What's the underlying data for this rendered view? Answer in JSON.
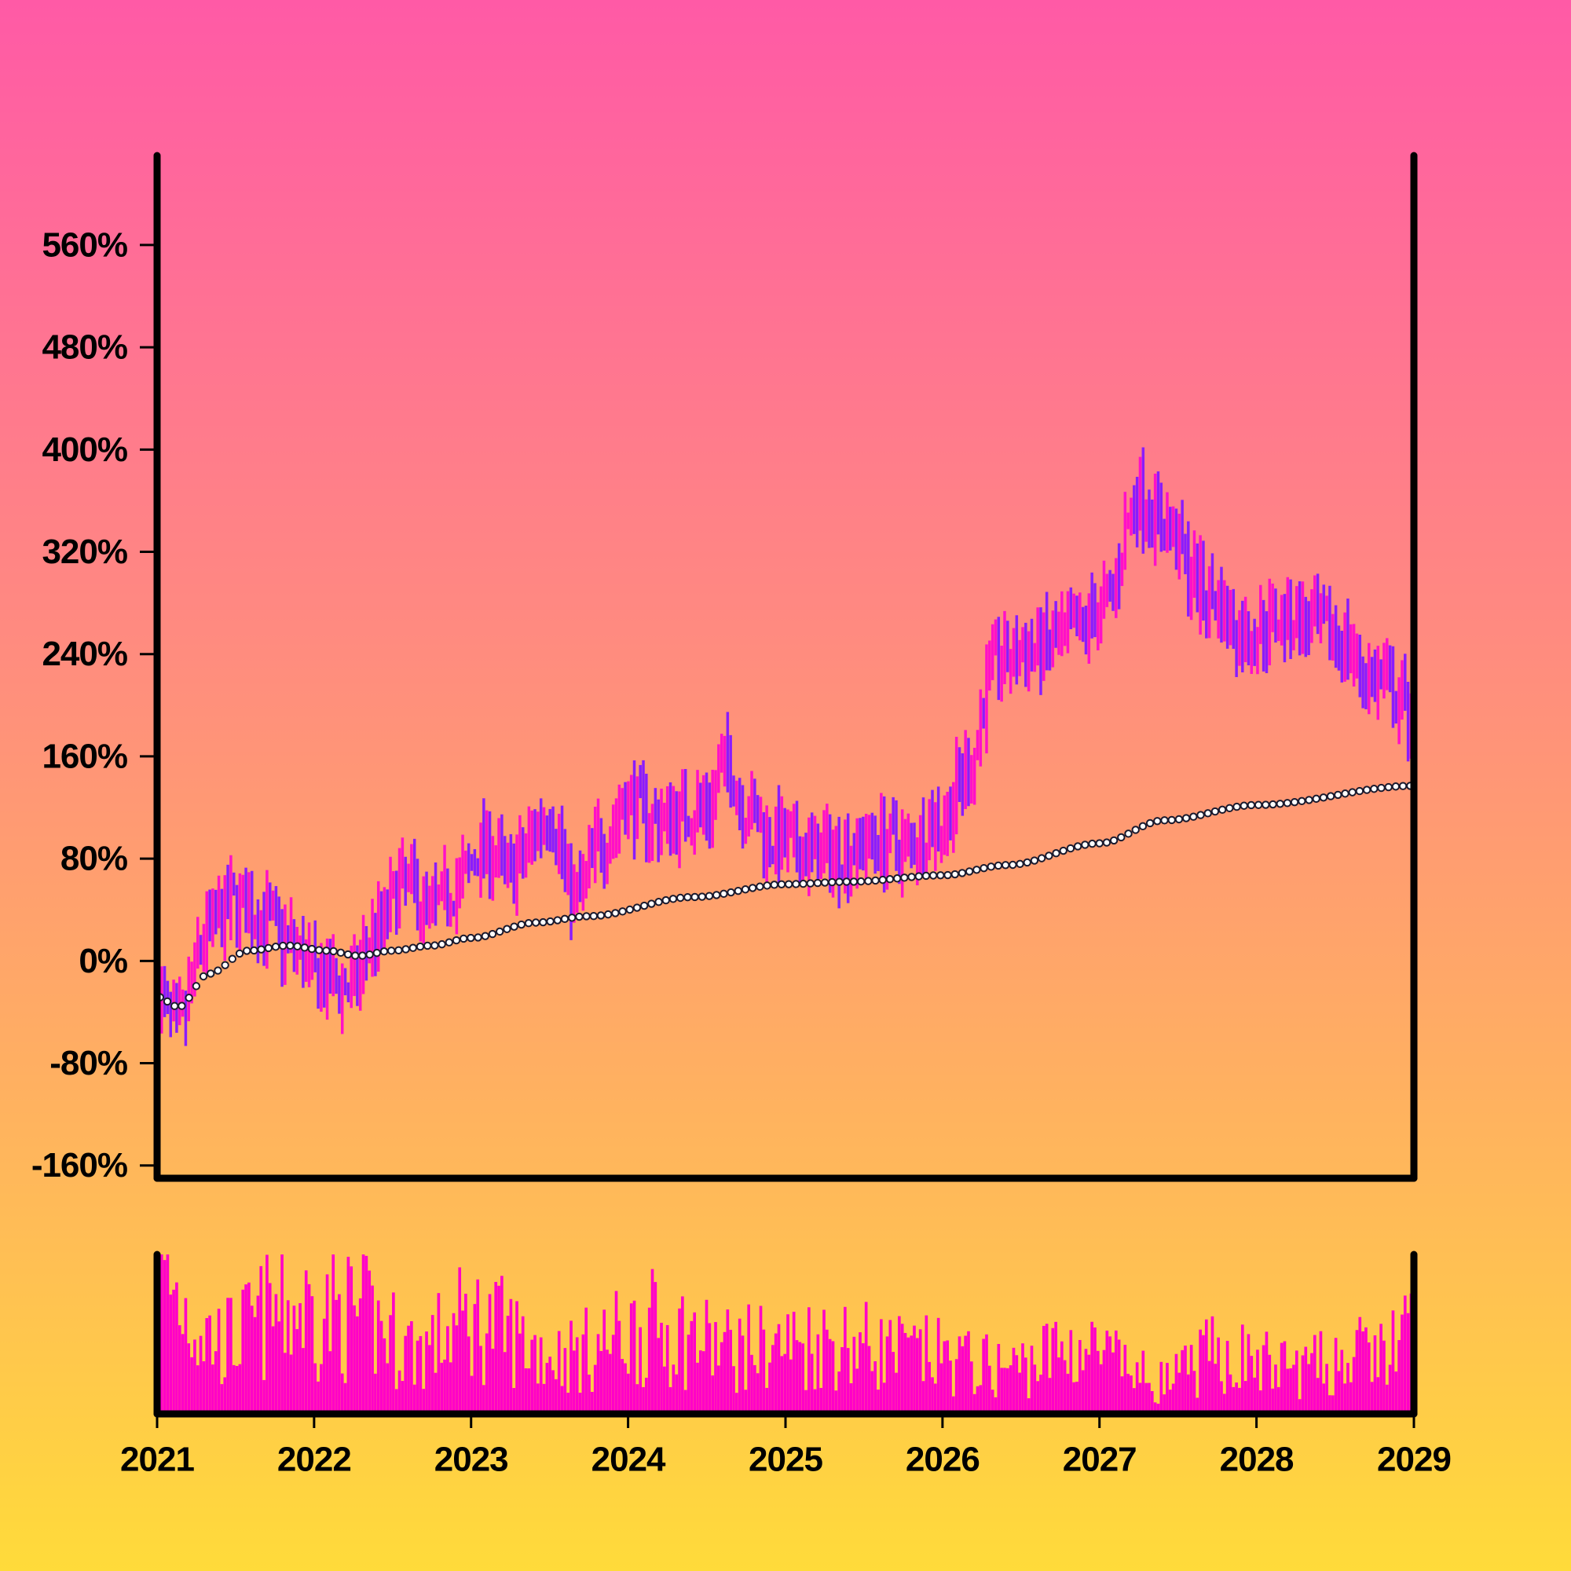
{
  "colors": {
    "up": "#ff10c8",
    "down": "#8a1cff",
    "volume": "#ff00c8",
    "axis": "#000000",
    "trend_marker_fill": "#ffffff",
    "trend_marker_stroke": "#1a1a2e"
  },
  "chart_data": {
    "type": "ohlc",
    "title": "",
    "xlabel": "",
    "ylabel": "",
    "x_range": [
      "2021-01-01",
      "2029-01-01"
    ],
    "x_ticks": [
      "2021",
      "2022",
      "2023",
      "2024",
      "2025",
      "2026",
      "2027",
      "2028",
      "2029"
    ],
    "y_unit": "%",
    "ylim": [
      -170,
      630
    ],
    "y_ticks": [
      -160,
      -80,
      0,
      80,
      160,
      240,
      320,
      400,
      480,
      560
    ],
    "y_tick_labels": [
      "-160%",
      "-80%",
      "0%",
      "80%",
      "160%",
      "240%",
      "320%",
      "400%",
      "480%",
      "560%"
    ],
    "frequency": "weekly",
    "price_keypoints": [
      [
        "2021-01-01",
        -25
      ],
      [
        "2021-02-15",
        -55
      ],
      [
        "2021-05-01",
        25
      ],
      [
        "2021-07-01",
        45
      ],
      [
        "2021-09-01",
        35
      ],
      [
        "2021-11-01",
        15
      ],
      [
        "2022-01-15",
        -15
      ],
      [
        "2022-04-01",
        -20
      ],
      [
        "2022-05-15",
        20
      ],
      [
        "2022-08-01",
        60
      ],
      [
        "2022-10-01",
        40
      ],
      [
        "2022-12-01",
        60
      ],
      [
        "2023-02-01",
        90
      ],
      [
        "2023-04-01",
        70
      ],
      [
        "2023-07-01",
        115
      ],
      [
        "2023-09-01",
        50
      ],
      [
        "2023-11-01",
        95
      ],
      [
        "2024-01-01",
        125
      ],
      [
        "2024-03-01",
        110
      ],
      [
        "2024-07-01",
        120
      ],
      [
        "2024-08-15",
        155
      ],
      [
        "2024-10-01",
        120
      ],
      [
        "2024-12-01",
        95
      ],
      [
        "2025-02-01",
        85
      ],
      [
        "2025-05-01",
        85
      ],
      [
        "2025-08-01",
        95
      ],
      [
        "2025-10-01",
        90
      ],
      [
        "2026-01-01",
        110
      ],
      [
        "2026-03-01",
        150
      ],
      [
        "2026-05-01",
        235
      ],
      [
        "2026-09-01",
        245
      ],
      [
        "2026-11-01",
        255
      ],
      [
        "2027-01-15",
        280
      ],
      [
        "2027-04-01",
        365
      ],
      [
        "2027-06-01",
        340
      ],
      [
        "2027-09-01",
        290
      ],
      [
        "2027-12-01",
        255
      ],
      [
        "2028-03-01",
        270
      ],
      [
        "2028-07-01",
        255
      ],
      [
        "2028-10-01",
        220
      ],
      [
        "2029-01-01",
        195
      ]
    ],
    "trend_keypoints": [
      [
        "2021-01-01",
        -28
      ],
      [
        "2021-02-20",
        -36
      ],
      [
        "2021-05-01",
        -10
      ],
      [
        "2021-08-01",
        8
      ],
      [
        "2021-11-01",
        12
      ],
      [
        "2022-02-01",
        8
      ],
      [
        "2022-04-15",
        4
      ],
      [
        "2022-07-01",
        8
      ],
      [
        "2022-10-01",
        12
      ],
      [
        "2023-01-01",
        18
      ],
      [
        "2023-06-01",
        30
      ],
      [
        "2023-10-01",
        35
      ],
      [
        "2024-06-01",
        50
      ],
      [
        "2025-01-01",
        60
      ],
      [
        "2025-06-01",
        62
      ],
      [
        "2026-01-01",
        67
      ],
      [
        "2026-06-01",
        75
      ],
      [
        "2027-01-01",
        92
      ],
      [
        "2027-06-01",
        110
      ],
      [
        "2028-01-01",
        122
      ],
      [
        "2029-01-01",
        137
      ]
    ],
    "volume_keypoints": [
      [
        "2021-01-01",
        1.0
      ],
      [
        "2021-06-01",
        0.55
      ],
      [
        "2021-11-01",
        0.8
      ],
      [
        "2022-04-01",
        0.75
      ],
      [
        "2022-09-01",
        0.5
      ],
      [
        "2023-01-01",
        0.7
      ],
      [
        "2023-08-01",
        0.45
      ],
      [
        "2024-03-01",
        0.65
      ],
      [
        "2024-09-01",
        0.5
      ],
      [
        "2025-05-01",
        0.55
      ],
      [
        "2025-11-01",
        0.45
      ],
      [
        "2026-06-01",
        0.35
      ],
      [
        "2026-11-01",
        0.5
      ],
      [
        "2027-06-01",
        0.25
      ],
      [
        "2027-10-01",
        0.45
      ],
      [
        "2028-04-01",
        0.35
      ],
      [
        "2028-10-01",
        0.45
      ],
      [
        "2029-01-01",
        0.6
      ]
    ]
  }
}
